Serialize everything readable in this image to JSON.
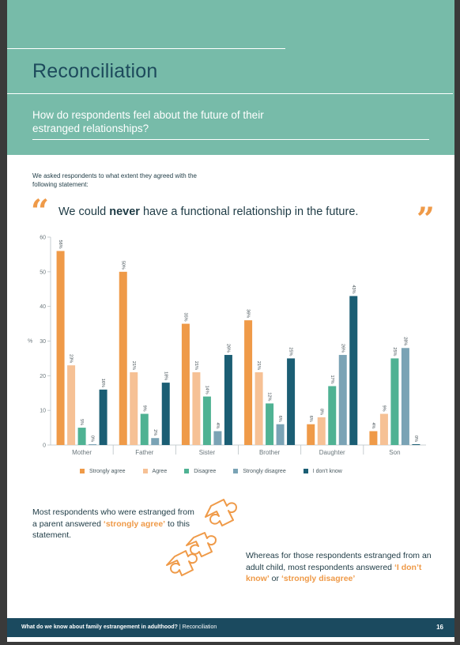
{
  "header": {
    "title": "Reconciliation",
    "subtitle": "How do respondents feel about the future of their estranged relationships?"
  },
  "intro": "We asked respondents to what extent they agreed with the following statement:",
  "quote": {
    "open_mark": "“",
    "close_mark": "”",
    "before": "We could ",
    "emphasis": "never",
    "after": " have a functional relationship in the future."
  },
  "chart_data": {
    "type": "bar",
    "ylabel": "%",
    "ylim": [
      0,
      60
    ],
    "yticks": [
      0,
      10,
      20,
      30,
      40,
      50,
      60
    ],
    "categories": [
      "Mother",
      "Father",
      "Sister",
      "Brother",
      "Daughter",
      "Son"
    ],
    "series": [
      {
        "name": "Strongly agree",
        "color": "#ef9a48",
        "values": [
          56,
          50,
          35,
          36,
          6,
          4
        ],
        "labels": [
          "56%",
          "50%",
          "35%",
          "36%",
          "6%",
          "4%"
        ]
      },
      {
        "name": "Agree",
        "color": "#f6c195",
        "values": [
          23,
          21,
          21,
          21,
          8,
          9
        ],
        "labels": [
          "23%",
          "21%",
          "21%",
          "21%",
          "8%",
          "9%"
        ]
      },
      {
        "name": "Disagree",
        "color": "#4fb293",
        "values": [
          5,
          9,
          14,
          12,
          17,
          25
        ],
        "labels": [
          "5%",
          "9%",
          "14%",
          "12%",
          "17%",
          "25%"
        ]
      },
      {
        "name": "Strongly disagree",
        "color": "#7aa3b5",
        "values": [
          0,
          2,
          4,
          6,
          26,
          28
        ],
        "labels": [
          "0%",
          "2%",
          "4%",
          "6%",
          "26%",
          "28%"
        ]
      },
      {
        "name": "I don't know",
        "color": "#1b5e74",
        "values": [
          16,
          18,
          26,
          25,
          43,
          0
        ],
        "labels": [
          "16%",
          "18%",
          "26%",
          "25%",
          "43%",
          "0%"
        ]
      }
    ]
  },
  "note1": {
    "text": "Most respondents who were estranged from a parent answered ",
    "highlight": "‘strongly agree’",
    "tail": " to this statement."
  },
  "note2": {
    "text": "Whereas for those respondents estranged from an adult child, most respondents answered ",
    "highlight1": "‘I don’t know’",
    "mid": " or ",
    "highlight2": "‘strongly disagree’"
  },
  "footer": {
    "text_bold": "What do we know about family estrangement in adulthood?",
    "separator": " | ",
    "section": "Reconciliation",
    "page": "16"
  }
}
